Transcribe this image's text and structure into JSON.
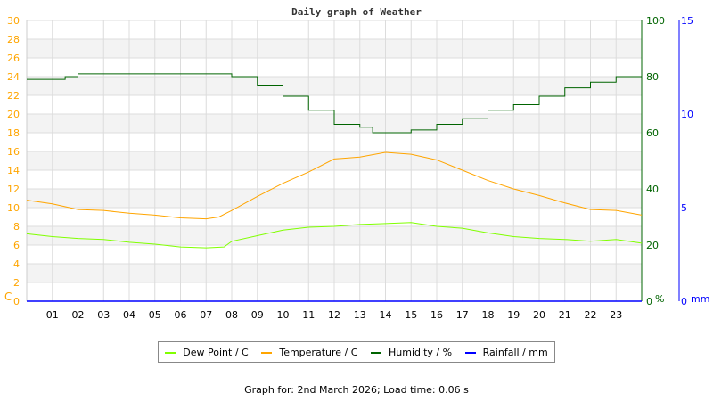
{
  "chart_data": {
    "type": "line",
    "title": "Daily graph of Weather",
    "x_ticks": [
      "01",
      "02",
      "03",
      "04",
      "05",
      "06",
      "07",
      "08",
      "09",
      "10",
      "11",
      "12",
      "13",
      "14",
      "15",
      "16",
      "17",
      "18",
      "19",
      "20",
      "21",
      "22",
      "23"
    ],
    "xlim": [
      0,
      24
    ],
    "y_left": {
      "label": "C",
      "range": [
        0,
        30
      ],
      "ticks": [
        0,
        2,
        4,
        6,
        8,
        10,
        12,
        14,
        16,
        18,
        20,
        22,
        24,
        26,
        28,
        30
      ],
      "color": "#ffa500"
    },
    "y_right1": {
      "label": "%",
      "range": [
        0,
        100
      ],
      "ticks": [
        0,
        20,
        40,
        60,
        80,
        100
      ],
      "color": "#006400"
    },
    "y_right2": {
      "label": "mm",
      "range": [
        0,
        15
      ],
      "ticks": [
        0,
        5,
        10,
        15
      ],
      "color": "#0000ff"
    },
    "grid": true,
    "legend_position": "bottom",
    "series": [
      {
        "name": "Dew Point / C",
        "color": "#80ff00",
        "axis": "left",
        "x": [
          0,
          1,
          2,
          3,
          4,
          5,
          6,
          7,
          7.7,
          8,
          9,
          10,
          11,
          12,
          13,
          14,
          15,
          16,
          17,
          18,
          19,
          20,
          21,
          22,
          23,
          24
        ],
        "values": [
          7.2,
          6.9,
          6.7,
          6.6,
          6.3,
          6.1,
          5.8,
          5.7,
          5.8,
          6.4,
          7.0,
          7.6,
          7.9,
          8.0,
          8.2,
          8.3,
          8.4,
          8.0,
          7.8,
          7.3,
          6.9,
          6.7,
          6.6,
          6.4,
          6.6,
          6.2
        ]
      },
      {
        "name": "Temperature / C",
        "color": "#ffa500",
        "axis": "left",
        "x": [
          0,
          1,
          2,
          3,
          4,
          5,
          6,
          7,
          7.5,
          8,
          9,
          10,
          11,
          12,
          13,
          14,
          15,
          16,
          17,
          18,
          19,
          20,
          21,
          22,
          23,
          24
        ],
        "values": [
          10.8,
          10.4,
          9.8,
          9.7,
          9.4,
          9.2,
          8.9,
          8.8,
          9.0,
          9.7,
          11.2,
          12.6,
          13.8,
          15.2,
          15.4,
          15.9,
          15.7,
          15.1,
          14.0,
          12.9,
          12.0,
          11.3,
          10.5,
          9.8,
          9.7,
          9.2
        ]
      },
      {
        "name": "Humidity / %",
        "color": "#006400",
        "axis": "right1",
        "x": [
          0,
          1,
          1.5,
          2,
          7.5,
          8,
          9,
          10,
          11,
          12,
          13,
          13.5,
          14,
          15,
          16,
          17,
          18,
          19,
          20,
          21,
          22,
          23,
          24
        ],
        "values": [
          79,
          79,
          80,
          81,
          81,
          80,
          77,
          73,
          68,
          63,
          62,
          60,
          60,
          61,
          63,
          65,
          68,
          70,
          73,
          76,
          78,
          80,
          82
        ]
      },
      {
        "name": "Rainfall / mm",
        "color": "#0000ff",
        "axis": "right2",
        "x": [
          0,
          24
        ],
        "values": [
          0,
          0
        ]
      }
    ]
  },
  "footer": "Graph for: 2nd March 2026; Load time: 0.06 s"
}
